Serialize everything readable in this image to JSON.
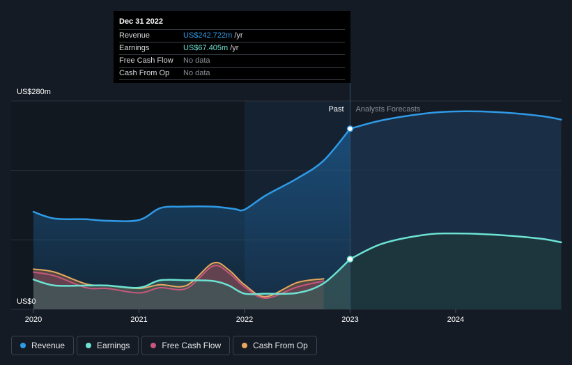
{
  "tooltip": {
    "date": "Dec 31 2022",
    "rows": [
      {
        "label": "Revenue",
        "value": "US$242.722m",
        "unit": "/yr",
        "color": "#2f9ae6"
      },
      {
        "label": "Earnings",
        "value": "US$67.405m",
        "unit": "/yr",
        "color": "#6ce3d3"
      },
      {
        "label": "Free Cash Flow",
        "value": "No data",
        "unit": "",
        "color": "#7b8088"
      },
      {
        "label": "Cash From Op",
        "value": "No data",
        "unit": "",
        "color": "#7b8088"
      }
    ]
  },
  "legend": [
    {
      "label": "Revenue",
      "color": "#2f9ae6"
    },
    {
      "label": "Earnings",
      "color": "#6ce3d3"
    },
    {
      "label": "Free Cash Flow",
      "color": "#c8567f"
    },
    {
      "label": "Cash From Op",
      "color": "#e8a860"
    }
  ],
  "chart_data": {
    "type": "line",
    "ylabels": {
      "top": "US$280m",
      "bottom": "US$0"
    },
    "ylim": [
      0,
      280
    ],
    "xlim": [
      2020,
      2025
    ],
    "x_ticks": [
      "2020",
      "2021",
      "2022",
      "2023",
      "2024"
    ],
    "x_tick_values": [
      2020,
      2021,
      2022,
      2023,
      2024
    ],
    "divider_x": 2023,
    "shade_start_x": 2022,
    "past_label": "Past",
    "forecast_label": "Analysts Forecasts",
    "grid": true,
    "series": [
      {
        "name": "Revenue",
        "color": "#2f9ae6",
        "fill": true,
        "x": [
          2020,
          2020.2,
          2020.5,
          2020.7,
          2021,
          2021.2,
          2021.4,
          2021.7,
          2021.9,
          2022,
          2022.2,
          2022.5,
          2022.75,
          2023
        ],
        "y": [
          131,
          122,
          121,
          119,
          120,
          136,
          138,
          138,
          135,
          134,
          153,
          176,
          200,
          242.7
        ]
      },
      {
        "name": "Revenue Forecast",
        "color": "#2f9ae6",
        "fill": true,
        "forecast": true,
        "x": [
          2023,
          2023.3,
          2023.7,
          2024,
          2024.4,
          2024.8,
          2025.0
        ],
        "y": [
          242.7,
          254,
          263,
          266,
          265,
          260,
          255
        ]
      },
      {
        "name": "Earnings",
        "color": "#6ce3d3",
        "fill": true,
        "x": [
          2020,
          2020.2,
          2020.5,
          2020.7,
          2021,
          2021.2,
          2021.45,
          2021.7,
          2021.85,
          2022,
          2022.2,
          2022.5,
          2022.75,
          2023
        ],
        "y": [
          40,
          32,
          32,
          32,
          29,
          39,
          39,
          38,
          32,
          21,
          21,
          22,
          35,
          67.4
        ]
      },
      {
        "name": "Earnings Forecast",
        "color": "#6ce3d3",
        "fill": true,
        "forecast": true,
        "x": [
          2023,
          2023.3,
          2023.7,
          2024,
          2024.4,
          2024.8,
          2025.0
        ],
        "y": [
          67.4,
          88,
          100,
          102,
          100,
          95,
          90
        ]
      },
      {
        "name": "Free Cash Flow",
        "color": "#c8567f",
        "fill": true,
        "x": [
          2020,
          2020.2,
          2020.5,
          2020.7,
          2021,
          2021.2,
          2021.45,
          2021.7,
          2021.85,
          2022,
          2022.2,
          2022.5,
          2022.75
        ],
        "y": [
          50,
          45,
          29,
          28,
          22,
          29,
          28,
          58,
          49,
          30,
          15,
          30,
          38
        ]
      },
      {
        "name": "Cash From Op",
        "color": "#e8a860",
        "fill": true,
        "x": [
          2020,
          2020.2,
          2020.5,
          2020.7,
          2021,
          2021.2,
          2021.45,
          2021.7,
          2021.85,
          2022,
          2022.2,
          2022.5,
          2022.75
        ],
        "y": [
          54,
          50,
          34,
          32,
          28,
          33,
          32,
          62,
          53,
          33,
          17,
          36,
          41
        ]
      }
    ]
  }
}
